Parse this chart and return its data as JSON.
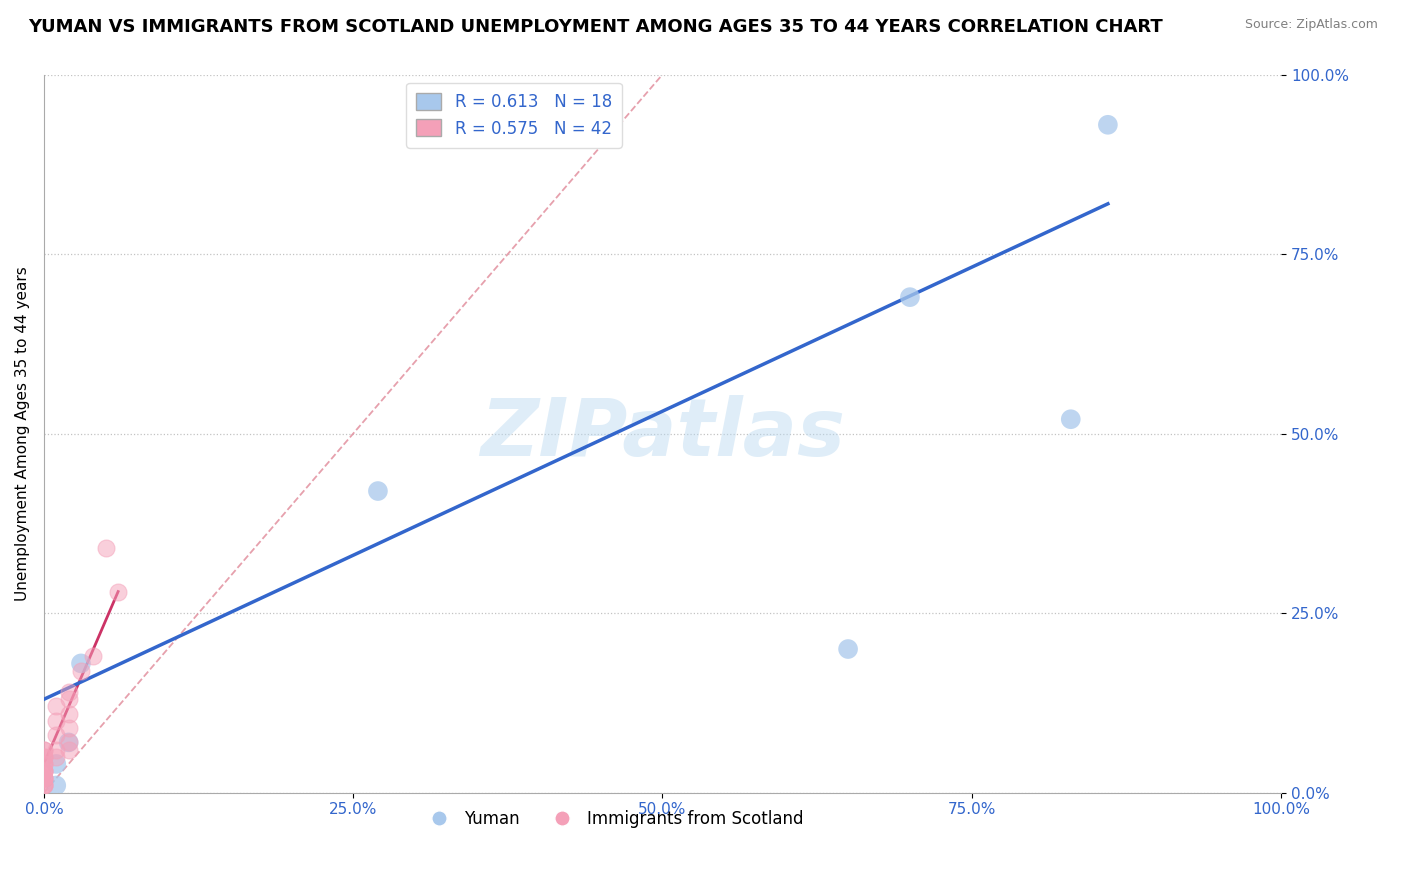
{
  "title": "YUMAN VS IMMIGRANTS FROM SCOTLAND UNEMPLOYMENT AMONG AGES 35 TO 44 YEARS CORRELATION CHART",
  "source": "Source: ZipAtlas.com",
  "ylabel": "Unemployment Among Ages 35 to 44 years",
  "xlim": [
    0,
    1
  ],
  "ylim": [
    0,
    1
  ],
  "xticks": [
    0.0,
    0.25,
    0.5,
    0.75,
    1.0
  ],
  "yticks": [
    0.0,
    0.25,
    0.5,
    0.75,
    1.0
  ],
  "xtick_labels": [
    "0.0%",
    "25.0%",
    "50.0%",
    "75.0%",
    "100.0%"
  ],
  "ytick_labels": [
    "0.0%",
    "25.0%",
    "50.0%",
    "75.0%",
    "100.0%"
  ],
  "blue_scatter_x": [
    0.01,
    0.01,
    0.02,
    0.03,
    0.27,
    0.65,
    0.7,
    0.83,
    0.86
  ],
  "blue_scatter_y": [
    0.01,
    0.04,
    0.07,
    0.18,
    0.42,
    0.2,
    0.69,
    0.52,
    0.93
  ],
  "pink_scatter_x": [
    0.0,
    0.0,
    0.0,
    0.0,
    0.0,
    0.0,
    0.0,
    0.0,
    0.0,
    0.0,
    0.0,
    0.0,
    0.0,
    0.0,
    0.0,
    0.01,
    0.01,
    0.01,
    0.01,
    0.01,
    0.02,
    0.02,
    0.02,
    0.02,
    0.02,
    0.02,
    0.03,
    0.04,
    0.05,
    0.06
  ],
  "pink_scatter_y": [
    0.01,
    0.01,
    0.01,
    0.02,
    0.02,
    0.02,
    0.03,
    0.03,
    0.03,
    0.04,
    0.04,
    0.05,
    0.05,
    0.06,
    0.06,
    0.05,
    0.06,
    0.08,
    0.1,
    0.12,
    0.06,
    0.07,
    0.09,
    0.11,
    0.13,
    0.14,
    0.17,
    0.19,
    0.34,
    0.28
  ],
  "blue_line_x": [
    0.0,
    0.86
  ],
  "blue_line_y": [
    0.13,
    0.82
  ],
  "pink_line_x": [
    0.0,
    0.06
  ],
  "pink_line_y": [
    0.04,
    0.28
  ],
  "diag_line_x": [
    0.0,
    0.5
  ],
  "diag_line_y": [
    0.0,
    1.0
  ],
  "blue_R": "0.613",
  "blue_N": "18",
  "pink_R": "0.575",
  "pink_N": "42",
  "blue_color": "#A8C8EC",
  "pink_color": "#F4A0B8",
  "blue_line_color": "#3366CC",
  "pink_line_color": "#CC3366",
  "diag_color": "#E08898",
  "legend_label_blue": "Yuman",
  "legend_label_pink": "Immigrants from Scotland",
  "watermark": "ZIPatlas",
  "title_fontsize": 13,
  "label_fontsize": 11,
  "tick_fontsize": 11,
  "legend_fontsize": 12
}
